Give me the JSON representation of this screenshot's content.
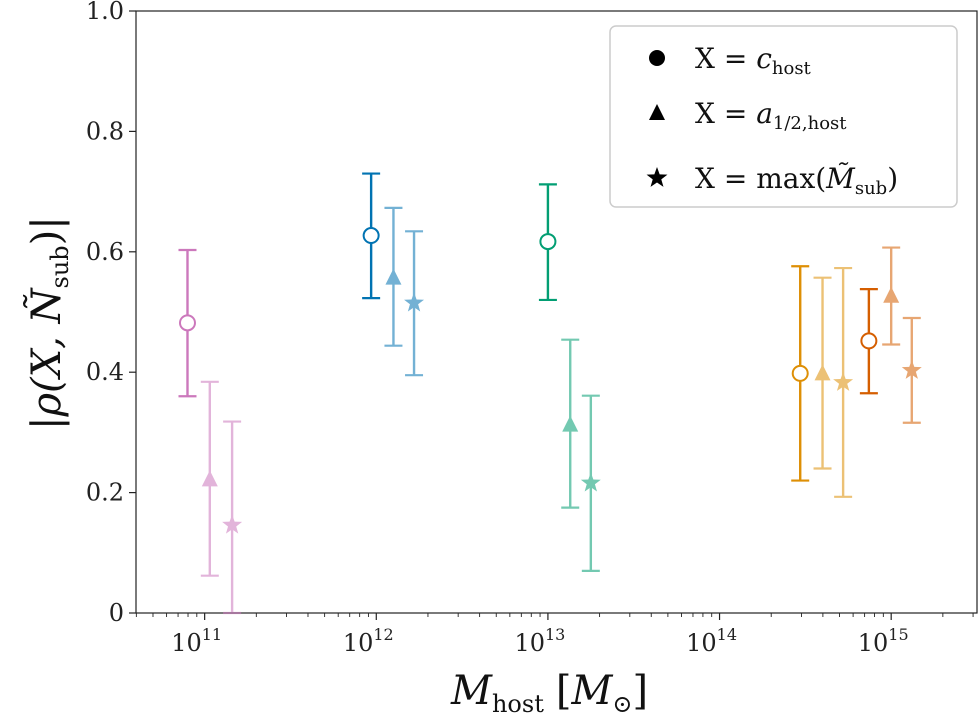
{
  "chart_data": {
    "type": "errorbar",
    "title": "",
    "xlabel": {
      "main": "M",
      "sub": "host",
      "unit_open": "[",
      "unit_main": "M",
      "unit_sub": "⊙",
      "unit_close": "]"
    },
    "ylabel": {
      "text": "|ρ(X, Ñ",
      "sub": "sub",
      "close": ")|"
    },
    "xscale": "log",
    "xlim": [
      10.6,
      15.5
    ],
    "ylim": [
      0,
      1.0
    ],
    "xticks": [
      {
        "base": "10",
        "exp": "11",
        "value": 11
      },
      {
        "base": "10",
        "exp": "12",
        "value": 12
      },
      {
        "base": "10",
        "exp": "13",
        "value": 13
      },
      {
        "base": "10",
        "exp": "14",
        "value": 14
      },
      {
        "base": "10",
        "exp": "15",
        "value": 15
      }
    ],
    "yticks": [
      {
        "label": "0",
        "value": 0
      },
      {
        "label": "0.2",
        "value": 0.2
      },
      {
        "label": "0.4",
        "value": 0.4
      },
      {
        "label": "0.6",
        "value": 0.6
      },
      {
        "label": "0.8",
        "value": 0.8
      },
      {
        "label": "1.0",
        "value": 1.0
      }
    ],
    "legend": {
      "position": "top-right",
      "entries": [
        {
          "marker": "circle",
          "prefix": "X = ",
          "main": "c",
          "sub": "host",
          "suffix": ""
        },
        {
          "marker": "triangle",
          "prefix": "X = ",
          "main": "a",
          "sub": "1/2,host",
          "suffix": ""
        },
        {
          "marker": "star",
          "prefix": "X = max(",
          "main": "M̃",
          "sub": "sub",
          "suffix": ")"
        }
      ]
    },
    "series": [
      {
        "name": "pink-c",
        "marker": "circle",
        "color": "#cc78bc",
        "opacity": 1.0,
        "log_x": 10.9,
        "y": 0.482,
        "ylo": 0.36,
        "yhi": 0.603
      },
      {
        "name": "pink-a",
        "marker": "triangle",
        "color": "#cc78bc",
        "opacity": 0.55,
        "log_x": 11.03,
        "y": 0.222,
        "ylo": 0.062,
        "yhi": 0.384
      },
      {
        "name": "pink-m",
        "marker": "star",
        "color": "#cc78bc",
        "opacity": 0.55,
        "log_x": 11.16,
        "y": 0.146,
        "ylo": 0.0,
        "yhi": 0.318
      },
      {
        "name": "blue-c",
        "marker": "circle",
        "color": "#0173b2",
        "opacity": 1.0,
        "log_x": 11.97,
        "y": 0.627,
        "ylo": 0.523,
        "yhi": 0.73
      },
      {
        "name": "blue-a",
        "marker": "triangle",
        "color": "#0173b2",
        "opacity": 0.55,
        "log_x": 12.1,
        "y": 0.557,
        "ylo": 0.444,
        "yhi": 0.673
      },
      {
        "name": "blue-m",
        "marker": "star",
        "color": "#0173b2",
        "opacity": 0.55,
        "log_x": 12.22,
        "y": 0.515,
        "ylo": 0.395,
        "yhi": 0.634
      },
      {
        "name": "green-c",
        "marker": "circle",
        "color": "#029e73",
        "opacity": 1.0,
        "log_x": 13.0,
        "y": 0.617,
        "ylo": 0.52,
        "yhi": 0.712
      },
      {
        "name": "green-a",
        "marker": "triangle",
        "color": "#029e73",
        "opacity": 0.55,
        "log_x": 13.13,
        "y": 0.313,
        "ylo": 0.175,
        "yhi": 0.454
      },
      {
        "name": "green-m",
        "marker": "star",
        "color": "#029e73",
        "opacity": 0.55,
        "log_x": 13.25,
        "y": 0.216,
        "ylo": 0.07,
        "yhi": 0.361
      },
      {
        "name": "gold-c",
        "marker": "circle",
        "color": "#de8f05",
        "opacity": 1.0,
        "log_x": 14.47,
        "y": 0.398,
        "ylo": 0.22,
        "yhi": 0.576
      },
      {
        "name": "gold-a",
        "marker": "triangle",
        "color": "#de8f05",
        "opacity": 0.55,
        "log_x": 14.6,
        "y": 0.398,
        "ylo": 0.24,
        "yhi": 0.557
      },
      {
        "name": "gold-m",
        "marker": "star",
        "color": "#de8f05",
        "opacity": 0.55,
        "log_x": 14.72,
        "y": 0.383,
        "ylo": 0.193,
        "yhi": 0.573
      },
      {
        "name": "orange-c",
        "marker": "circle",
        "color": "#d55e00",
        "opacity": 1.0,
        "log_x": 14.87,
        "y": 0.452,
        "ylo": 0.365,
        "yhi": 0.538
      },
      {
        "name": "orange-a",
        "marker": "triangle",
        "color": "#d55e00",
        "opacity": 0.55,
        "log_x": 15.0,
        "y": 0.527,
        "ylo": 0.446,
        "yhi": 0.607
      },
      {
        "name": "orange-m",
        "marker": "star",
        "color": "#d55e00",
        "opacity": 0.55,
        "log_x": 15.12,
        "y": 0.403,
        "ylo": 0.316,
        "yhi": 0.49
      }
    ]
  }
}
